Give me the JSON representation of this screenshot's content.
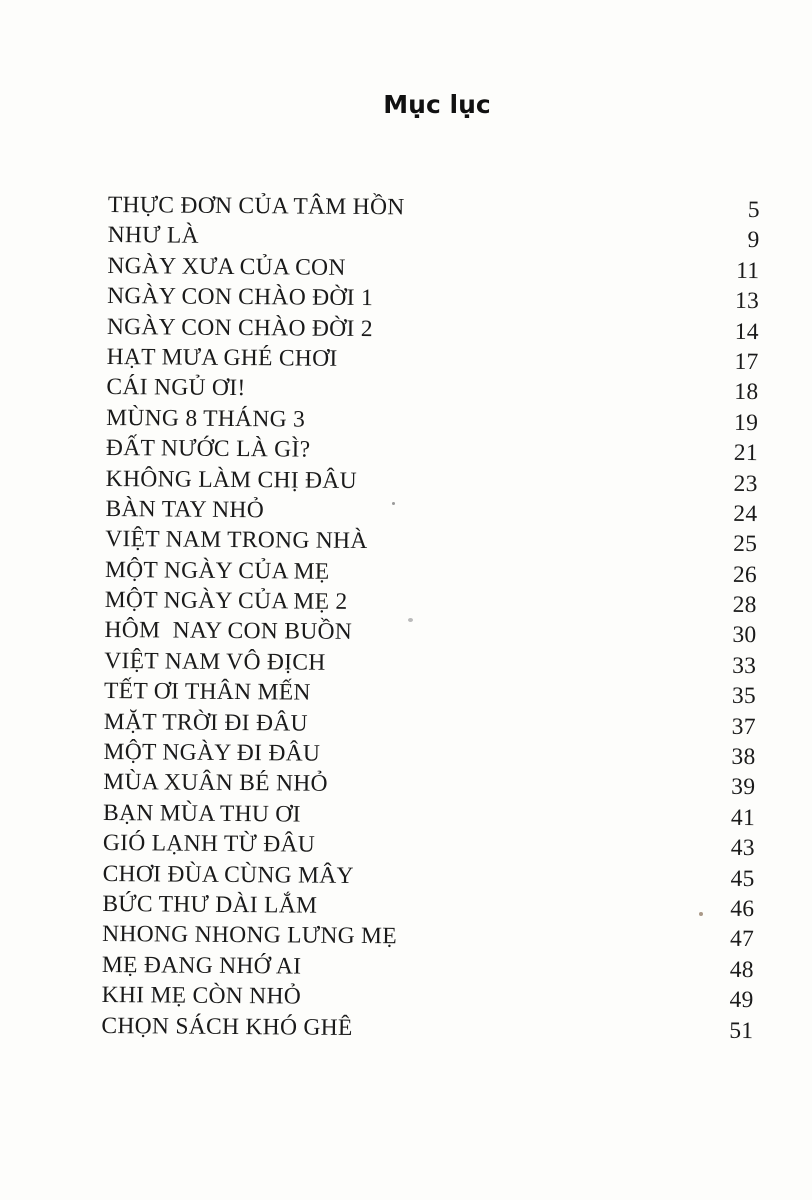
{
  "title": "Mục lục",
  "entries": [
    {
      "label": "THỰC ĐƠN CỦA TÂM HỒN",
      "page": "5"
    },
    {
      "label": "NHƯ LÀ",
      "page": "9"
    },
    {
      "label": "NGÀY XƯA CỦA CON",
      "page": "11"
    },
    {
      "label": "NGÀY CON CHÀO ĐỜI 1",
      "page": "13"
    },
    {
      "label": "NGÀY CON CHÀO ĐỜI 2",
      "page": "14"
    },
    {
      "label": "HẠT MƯA GHÉ CHƠI",
      "page": "17"
    },
    {
      "label": "CÁI NGỦ ƠI!",
      "page": "18"
    },
    {
      "label": "MÙNG 8 THÁNG 3",
      "page": "19"
    },
    {
      "label": "ĐẤT NƯỚC LÀ GÌ?",
      "page": "21"
    },
    {
      "label": "KHÔNG LÀM CHỊ ĐÂU",
      "page": "23"
    },
    {
      "label": "BÀN TAY NHỎ",
      "page": "24"
    },
    {
      "label": "VIỆT NAM TRONG NHÀ",
      "page": "25"
    },
    {
      "label": "MỘT NGÀY CỦA MẸ",
      "page": "26"
    },
    {
      "label": "MỘT NGÀY CỦA MẸ 2",
      "page": "28"
    },
    {
      "label": "HÔM  NAY CON BUỒN",
      "page": "30"
    },
    {
      "label": "VIỆT NAM VÔ ĐỊCH",
      "page": "33"
    },
    {
      "label": "TẾT ƠI THÂN MẾN",
      "page": "35"
    },
    {
      "label": "MẶT TRỜI ĐI ĐÂU",
      "page": "37"
    },
    {
      "label": "MỘT NGÀY ĐI ĐÂU",
      "page": "38"
    },
    {
      "label": "MÙA XUÂN BÉ NHỎ",
      "page": "39"
    },
    {
      "label": "BẠN MÙA THU ƠI",
      "page": "41"
    },
    {
      "label": "GIÓ LẠNH TỪ ĐÂU",
      "page": "43"
    },
    {
      "label": "CHƠI ĐÙA CÙNG MÂY",
      "page": "45"
    },
    {
      "label": "BỨC THƯ DÀI LẮM",
      "page": "46"
    },
    {
      "label": "NHONG NHONG LƯNG MẸ",
      "page": "47"
    },
    {
      "label": "MẸ ĐANG NHỚ AI",
      "page": "48"
    },
    {
      "label": "KHI MẸ CÒN NHỎ",
      "page": "49"
    },
    {
      "label": "CHỌN SÁCH KHÓ GHÊ",
      "page": "51"
    }
  ]
}
